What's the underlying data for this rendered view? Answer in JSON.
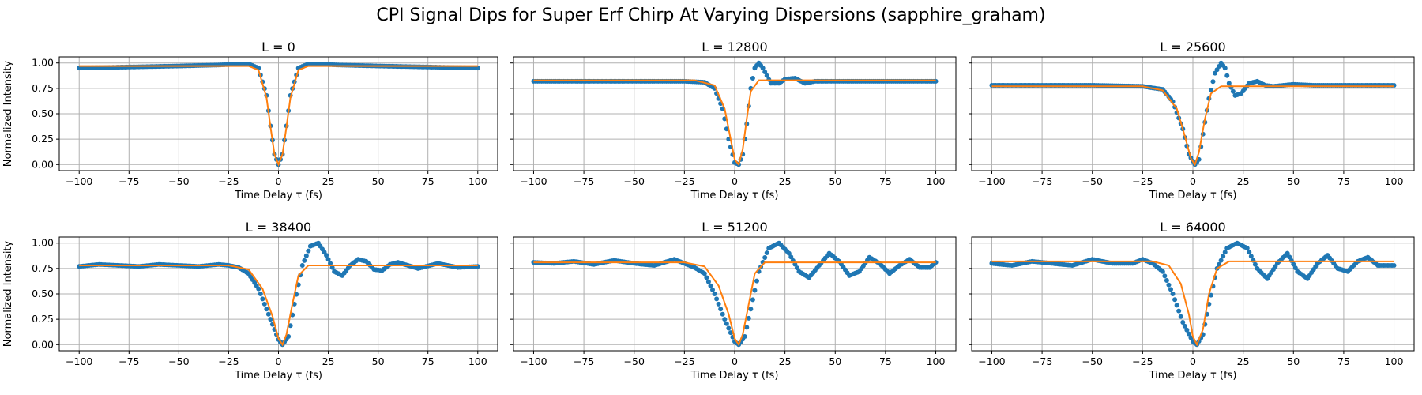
{
  "figure": {
    "title": "CPI Signal Dips for Super Erf Chirp At Varying Dispersions (sapphire_graham)"
  },
  "colors": {
    "data": "#1f77b4",
    "fit": "#ff7f0e",
    "grid": "#b0b0b0",
    "frame": "#000000"
  },
  "axes_common": {
    "xlabel": "Time Delay τ (fs)",
    "ylabel": "Normalized Intensity",
    "xlim": [
      -110,
      110
    ],
    "ylim": [
      -0.06,
      1.06
    ],
    "xticks": [
      -100,
      -75,
      -50,
      -25,
      0,
      25,
      50,
      75,
      100
    ],
    "xtick_labels": [
      "−100",
      "−75",
      "−50",
      "−25",
      "0",
      "25",
      "50",
      "75",
      "100"
    ],
    "yticks": [
      0.0,
      0.25,
      0.5,
      0.75,
      1.0
    ],
    "ytick_labels": [
      "0.00",
      "0.25",
      "0.50",
      "0.75",
      "1.00"
    ],
    "grid": true,
    "ylabel_shown_on": "left column only"
  },
  "chart_data": [
    {
      "type": "scatter+line",
      "title": "L = 0",
      "xlabel": "Time Delay τ (fs)",
      "ylabel": "Normalized Intensity",
      "series": [
        {
          "kind": "points",
          "x": [
            -100,
            -75,
            -50,
            -30,
            -20,
            -15,
            -10,
            -6,
            -4,
            -2,
            0,
            2,
            4,
            6,
            10,
            15,
            20,
            30,
            50,
            75,
            100
          ],
          "values": [
            0.95,
            0.96,
            0.97,
            0.98,
            0.99,
            0.99,
            0.95,
            0.68,
            0.38,
            0.1,
            0.0,
            0.1,
            0.38,
            0.68,
            0.95,
            0.99,
            0.99,
            0.98,
            0.97,
            0.96,
            0.95
          ]
        },
        {
          "kind": "line",
          "x": [
            -100,
            -15,
            -10,
            -6,
            -4,
            -2,
            0,
            2,
            4,
            6,
            10,
            15,
            100
          ],
          "values": [
            0.97,
            0.97,
            0.93,
            0.66,
            0.37,
            0.1,
            0.0,
            0.1,
            0.37,
            0.66,
            0.93,
            0.97,
            0.97
          ]
        }
      ]
    },
    {
      "type": "scatter+line",
      "title": "L = 12800",
      "xlabel": "Time Delay τ (fs)",
      "series": [
        {
          "kind": "points",
          "x": [
            -100,
            -75,
            -50,
            -25,
            -15,
            -10,
            -6,
            -3,
            0,
            2,
            4,
            6,
            8,
            10,
            12,
            14,
            18,
            22,
            25,
            30,
            35,
            40,
            50,
            75,
            100
          ],
          "values": [
            0.82,
            0.82,
            0.82,
            0.82,
            0.81,
            0.75,
            0.55,
            0.25,
            0.02,
            0.0,
            0.1,
            0.4,
            0.75,
            0.95,
            1.0,
            0.95,
            0.8,
            0.8,
            0.84,
            0.85,
            0.8,
            0.82,
            0.82,
            0.82,
            0.82
          ]
        },
        {
          "kind": "line",
          "x": [
            -100,
            -20,
            -10,
            -5,
            -2,
            0,
            2,
            4,
            6,
            8,
            12,
            20,
            100
          ],
          "values": [
            0.83,
            0.83,
            0.78,
            0.55,
            0.25,
            0.05,
            0.0,
            0.15,
            0.45,
            0.72,
            0.83,
            0.83,
            0.83
          ]
        }
      ]
    },
    {
      "type": "scatter+line",
      "title": "L = 25600",
      "xlabel": "Time Delay τ (fs)",
      "series": [
        {
          "kind": "points",
          "x": [
            -100,
            -75,
            -50,
            -25,
            -15,
            -10,
            -5,
            -2,
            1,
            3,
            5,
            8,
            11,
            14,
            16,
            18,
            21,
            24,
            28,
            32,
            36,
            40,
            45,
            50,
            60,
            75,
            100
          ],
          "values": [
            0.78,
            0.78,
            0.78,
            0.77,
            0.74,
            0.62,
            0.35,
            0.1,
            0.0,
            0.05,
            0.3,
            0.65,
            0.9,
            1.0,
            0.95,
            0.8,
            0.68,
            0.7,
            0.8,
            0.82,
            0.78,
            0.77,
            0.78,
            0.79,
            0.78,
            0.78,
            0.78
          ]
        },
        {
          "kind": "line",
          "x": [
            -100,
            -25,
            -15,
            -8,
            -4,
            -1,
            1,
            3,
            6,
            9,
            14,
            25,
            100
          ],
          "values": [
            0.77,
            0.77,
            0.73,
            0.55,
            0.28,
            0.06,
            0.0,
            0.12,
            0.45,
            0.7,
            0.77,
            0.77,
            0.77
          ]
        }
      ]
    },
    {
      "type": "scatter+line",
      "title": "L = 38400",
      "xlabel": "Time Delay τ (fs)",
      "ylabel": "Normalized Intensity",
      "series": [
        {
          "kind": "points",
          "x": [
            -100,
            -90,
            -80,
            -70,
            -60,
            -50,
            -40,
            -30,
            -25,
            -20,
            -15,
            -10,
            -5,
            0,
            2,
            5,
            8,
            12,
            16,
            20,
            24,
            28,
            32,
            36,
            40,
            44,
            48,
            52,
            56,
            60,
            70,
            80,
            90,
            100
          ],
          "values": [
            0.77,
            0.79,
            0.78,
            0.77,
            0.79,
            0.78,
            0.77,
            0.79,
            0.78,
            0.76,
            0.7,
            0.55,
            0.3,
            0.05,
            0.0,
            0.08,
            0.4,
            0.78,
            0.97,
            1.0,
            0.88,
            0.72,
            0.68,
            0.78,
            0.84,
            0.82,
            0.74,
            0.73,
            0.79,
            0.81,
            0.75,
            0.8,
            0.76,
            0.77
          ]
        },
        {
          "kind": "line",
          "x": [
            -100,
            -25,
            -15,
            -8,
            -3,
            0,
            2,
            4,
            7,
            10,
            15,
            25,
            100
          ],
          "values": [
            0.78,
            0.78,
            0.74,
            0.55,
            0.28,
            0.06,
            0.0,
            0.1,
            0.4,
            0.68,
            0.78,
            0.78,
            0.78
          ]
        }
      ]
    },
    {
      "type": "scatter+line",
      "title": "L = 51200",
      "xlabel": "Time Delay τ (fs)",
      "series": [
        {
          "kind": "points",
          "x": [
            -100,
            -90,
            -80,
            -70,
            -60,
            -50,
            -40,
            -30,
            -25,
            -20,
            -15,
            -10,
            -5,
            0,
            2,
            5,
            8,
            12,
            17,
            22,
            27,
            32,
            37,
            42,
            47,
            52,
            57,
            62,
            67,
            72,
            77,
            82,
            87,
            92,
            97,
            100
          ],
          "values": [
            0.81,
            0.8,
            0.82,
            0.79,
            0.83,
            0.8,
            0.78,
            0.84,
            0.8,
            0.76,
            0.7,
            0.5,
            0.25,
            0.03,
            0.0,
            0.08,
            0.35,
            0.72,
            0.95,
            1.0,
            0.9,
            0.72,
            0.66,
            0.78,
            0.9,
            0.82,
            0.68,
            0.72,
            0.86,
            0.8,
            0.7,
            0.78,
            0.84,
            0.76,
            0.76,
            0.81
          ]
        },
        {
          "kind": "line",
          "x": [
            -100,
            -25,
            -15,
            -8,
            -3,
            0,
            2,
            4,
            7,
            10,
            15,
            25,
            100
          ],
          "values": [
            0.81,
            0.81,
            0.77,
            0.58,
            0.3,
            0.06,
            0.0,
            0.1,
            0.4,
            0.7,
            0.81,
            0.81,
            0.81
          ]
        }
      ]
    },
    {
      "type": "scatter+line",
      "title": "L = 64000",
      "xlabel": "Time Delay τ (fs)",
      "series": [
        {
          "kind": "points",
          "x": [
            -100,
            -90,
            -80,
            -70,
            -60,
            -50,
            -40,
            -30,
            -25,
            -20,
            -15,
            -10,
            -5,
            0,
            2,
            5,
            8,
            12,
            17,
            22,
            27,
            32,
            37,
            42,
            47,
            52,
            57,
            62,
            67,
            72,
            77,
            82,
            87,
            92,
            97,
            100
          ],
          "values": [
            0.8,
            0.78,
            0.82,
            0.8,
            0.78,
            0.84,
            0.8,
            0.8,
            0.84,
            0.8,
            0.72,
            0.5,
            0.22,
            0.03,
            0.0,
            0.1,
            0.4,
            0.75,
            0.95,
            1.0,
            0.95,
            0.75,
            0.65,
            0.8,
            0.9,
            0.72,
            0.65,
            0.8,
            0.88,
            0.75,
            0.72,
            0.82,
            0.86,
            0.78,
            0.78,
            0.78
          ]
        },
        {
          "kind": "line",
          "x": [
            -100,
            -20,
            -12,
            -6,
            -2,
            0,
            2,
            5,
            8,
            12,
            18,
            25,
            100
          ],
          "values": [
            0.82,
            0.82,
            0.78,
            0.6,
            0.3,
            0.08,
            0.0,
            0.15,
            0.5,
            0.75,
            0.82,
            0.82,
            0.82
          ]
        }
      ]
    }
  ]
}
